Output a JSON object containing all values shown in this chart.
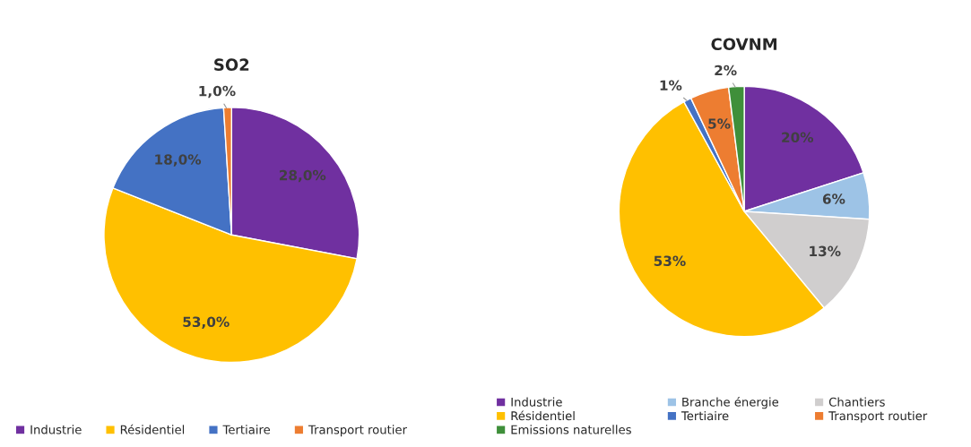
{
  "chart_data": [
    {
      "type": "pie",
      "title": "SO2",
      "categories": [
        "Industrie",
        "Résidentiel",
        "Tertiaire",
        "Transport routier"
      ],
      "values": [
        28,
        53,
        18,
        1
      ],
      "colors": [
        "#7030a0",
        "#ffc000",
        "#4472c4",
        "#ed7d31"
      ],
      "value_labels": [
        "28,0%",
        "53,0%",
        "18,0%",
        "1,0%"
      ],
      "legend": "bottom"
    },
    {
      "type": "pie",
      "title": "COVNM",
      "categories": [
        "Industrie",
        "Branche énergie",
        "Chantiers",
        "Résidentiel",
        "Tertiaire",
        "Transport routier",
        "Emissions naturelles"
      ],
      "values": [
        20,
        6,
        13,
        53,
        1,
        5,
        2
      ],
      "colors": [
        "#7030a0",
        "#9dc3e6",
        "#d0cece",
        "#ffc000",
        "#4472c4",
        "#ed7d31",
        "#3f8f3a"
      ],
      "value_labels": [
        "20%",
        "6%",
        "13%",
        "53%",
        "1%",
        "5%",
        "2%"
      ],
      "legend": "bottom"
    }
  ]
}
